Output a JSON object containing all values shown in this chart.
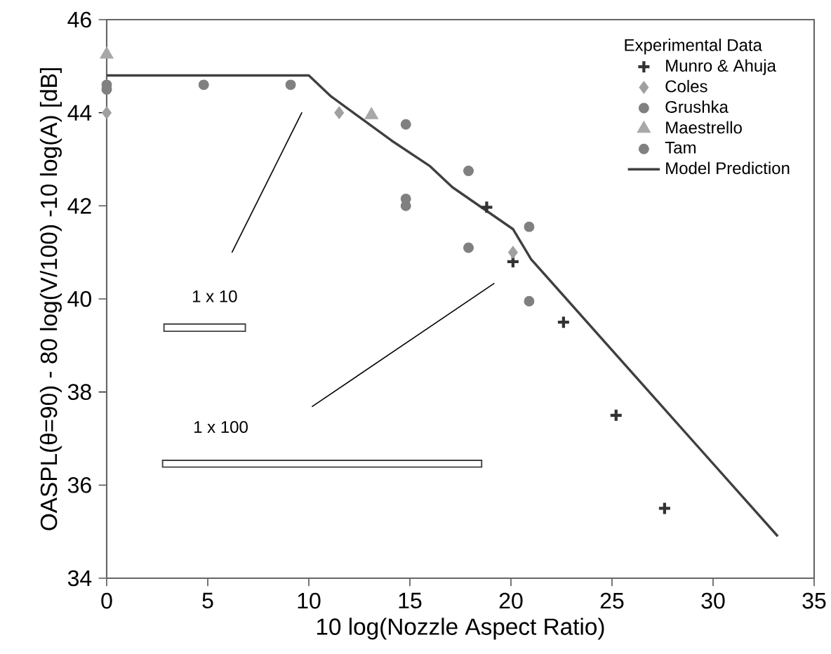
{
  "chart_data": {
    "type": "scatter",
    "xlabel": "10 log(Nozzle Aspect Ratio)",
    "ylabel": "OASPL(θ=90) - 80 log(V/100) -10 log(A) [dB]",
    "legend_title": "Experimental Data",
    "legend": "top right",
    "xlim": [
      0,
      35
    ],
    "ylim": [
      34,
      46
    ],
    "xticks": [
      0,
      5,
      10,
      15,
      20,
      25,
      30,
      35
    ],
    "yticks": [
      34,
      36,
      38,
      40,
      42,
      44,
      46
    ],
    "annotations": [
      "1 x 10",
      "1 x 100"
    ],
    "series": [
      {
        "name": "Munro & Ahuja",
        "color": "#333333",
        "marker": "cross",
        "x": [
          18.8,
          20.1,
          22.6,
          25.2,
          27.6
        ],
        "values": [
          41.97,
          40.8,
          39.5,
          37.5,
          35.5
        ]
      },
      {
        "name": "Coles",
        "color": "#a0a0a0",
        "marker": "diamond",
        "x": [
          0,
          11.5,
          20.1
        ],
        "values": [
          44.0,
          44.0,
          41.0
        ]
      },
      {
        "name": "Grushka",
        "color": "#808080",
        "marker": "circle",
        "x": [
          0,
          14.8,
          14.8,
          14.8,
          17.9,
          17.9,
          20.9,
          20.9
        ],
        "values": [
          44.5,
          43.75,
          42.15,
          42.0,
          42.75,
          41.1,
          41.55,
          39.95
        ]
      },
      {
        "name": "Maestrello",
        "color": "#a8a8a8",
        "marker": "triangle",
        "x": [
          0,
          13.1
        ],
        "values": [
          45.25,
          43.95
        ]
      },
      {
        "name": "Tam",
        "color": "#808080",
        "marker": "circle",
        "x": [
          0,
          4.8,
          9.1
        ],
        "values": [
          44.6,
          44.6,
          44.6
        ]
      },
      {
        "name": "Model Prediction",
        "type": "line",
        "color": "#404040",
        "marker": "none",
        "x": [
          0,
          10,
          11.1,
          14.1,
          16.0,
          17.1,
          20.1,
          21.0,
          33.2
        ],
        "values": [
          44.8,
          44.8,
          44.35,
          43.4,
          42.85,
          42.4,
          41.5,
          40.85,
          34.9
        ]
      }
    ]
  }
}
